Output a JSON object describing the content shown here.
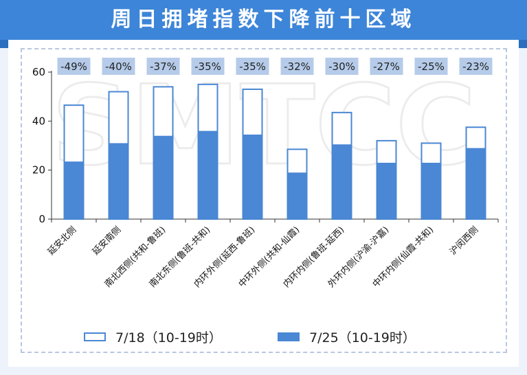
{
  "header": {
    "title": "周日拥堵指数下降前十区域"
  },
  "colors": {
    "banner": "#3d85d8",
    "bar": "#4a87d4",
    "pct_box": "#b5cbe9"
  },
  "watermark": "SMTCC",
  "chart_data": {
    "type": "bar",
    "title": "",
    "xlabel": "",
    "ylabel": "",
    "ylim": [
      0,
      60
    ],
    "yticks": [
      0,
      20,
      40,
      60
    ],
    "grid": false,
    "legend_position": "bottom",
    "categories": [
      "延安北侧",
      "延安南侧",
      "南北西侧(共和-鲁班)",
      "南北东侧(鲁班-共和)",
      "内环外侧(延西-鲁班)",
      "中环外侧(共和-仙霞)",
      "内环内侧(鲁班-延西)",
      "外环内侧(沪渝-沪嘉)",
      "中环内侧(仙霞-共和)",
      "沪闵西侧"
    ],
    "series": [
      {
        "name": "7/18（10-19时）",
        "style": "outline",
        "values": [
          46.5,
          52,
          54,
          55,
          53,
          28.5,
          43.5,
          32,
          31,
          37.5
        ]
      },
      {
        "name": "7/25（10-19时）",
        "style": "filled",
        "values": [
          23.5,
          31,
          34,
          36,
          34.5,
          19,
          30.5,
          23,
          23,
          29
        ]
      }
    ],
    "change_labels": [
      "-49%",
      "-40%",
      "-37%",
      "-35%",
      "-35%",
      "-32%",
      "-30%",
      "-27%",
      "-25%",
      "-23%"
    ]
  }
}
